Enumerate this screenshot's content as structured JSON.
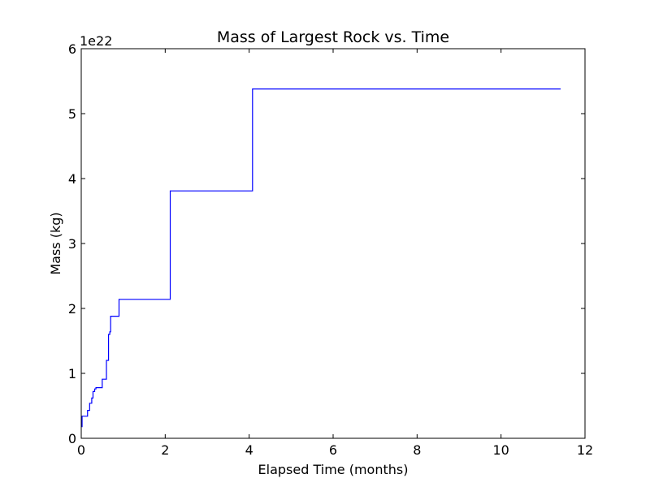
{
  "chart_data": {
    "type": "line",
    "title": "Mass of Largest Rock vs. Time",
    "xlabel": "Elapsed Time (months)",
    "ylabel": "Mass (kg)",
    "y_offset_text": "1e22",
    "xlim": [
      0,
      12
    ],
    "ylim": [
      0,
      6
    ],
    "x_ticks": [
      0,
      2,
      4,
      6,
      8,
      10,
      12
    ],
    "y_ticks": [
      0,
      1,
      2,
      3,
      4,
      5,
      6
    ],
    "x_tick_labels": [
      "0",
      "2",
      "4",
      "6",
      "8",
      "10",
      "12"
    ],
    "y_tick_labels": [
      "0",
      "1",
      "2",
      "3",
      "4",
      "5",
      "6"
    ],
    "y_scale_multiplier": 1e+22,
    "grid": false,
    "line_style": "step",
    "series": [
      {
        "color": "#0000ff",
        "x": [
          0.0,
          0.02,
          0.15,
          0.2,
          0.25,
          0.28,
          0.32,
          0.35,
          0.5,
          0.6,
          0.65,
          0.68,
          0.7,
          0.9,
          2.12,
          4.08,
          11.42
        ],
        "y": [
          0.18,
          0.34,
          0.43,
          0.54,
          0.62,
          0.72,
          0.76,
          0.78,
          0.91,
          1.2,
          1.6,
          1.64,
          1.88,
          2.14,
          3.81,
          5.38,
          5.38
        ]
      }
    ]
  }
}
